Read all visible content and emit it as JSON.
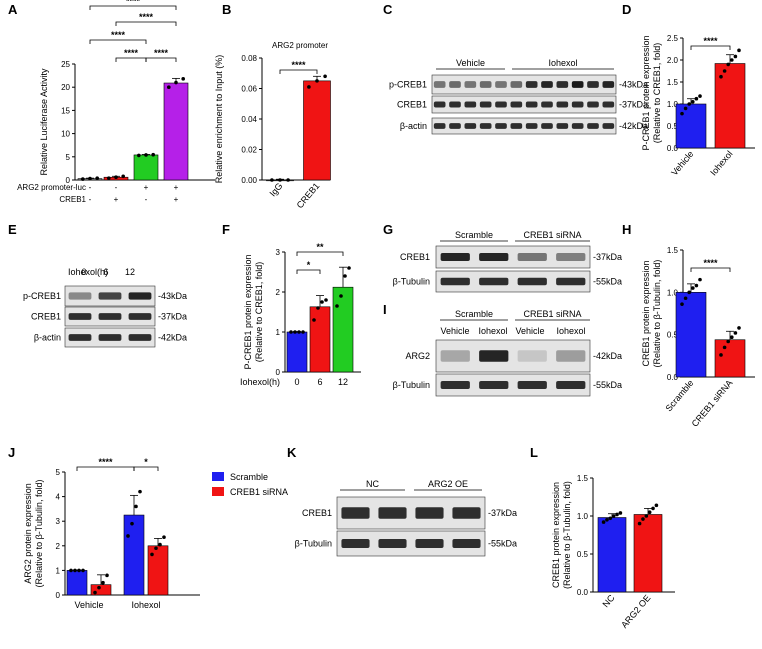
{
  "colors": {
    "blue": "#1f1ff0",
    "red": "#f01414",
    "green": "#22cc22",
    "purple": "#b520e8",
    "band": "#1a1a1a",
    "blot_bg": "#e4e4e4"
  },
  "panels": {
    "A": "A",
    "B": "B",
    "C": "C",
    "D": "D",
    "E": "E",
    "F": "F",
    "G": "G",
    "H": "H",
    "I": "I",
    "J": "J",
    "K": "K",
    "L": "L"
  },
  "blots": {
    "C": {
      "groups": [
        "Vehicle",
        "Iohexol"
      ],
      "rows": [
        "p-CREB1",
        "CREB1",
        "β-actin"
      ],
      "kda": [
        "-43kDa",
        "-37kDa",
        "-42kDa"
      ]
    },
    "E": {
      "header": "Iohexol(h)",
      "times": [
        "0",
        "6",
        "12"
      ],
      "rows": [
        "p-CREB1",
        "CREB1",
        "β-actin"
      ],
      "kda": [
        "-43kDa",
        "-37kDa",
        "-42kDa"
      ]
    },
    "G": {
      "groups": [
        "Scramble",
        "CREB1 siRNA"
      ],
      "rows": [
        "CREB1",
        "β-Tubulin"
      ],
      "kda": [
        "-37kDa",
        "-55kDa"
      ]
    },
    "I": {
      "groups": [
        "Scramble",
        "CREB1 siRNA"
      ],
      "lanes": [
        "Vehicle",
        "Iohexol",
        "Vehicle",
        "Iohexol"
      ],
      "rows": [
        "ARG2",
        "β-Tubulin"
      ],
      "kda": [
        "-42kDa",
        "-55kDa"
      ]
    },
    "K": {
      "groups": [
        "NC",
        "ARG2 OE"
      ],
      "rows": [
        "CREB1",
        "β-Tubulin"
      ],
      "kda": [
        "-37kDa",
        "-55kDa"
      ]
    }
  },
  "chart_data": [
    {
      "panel": "A",
      "type": "bar",
      "ylabel": "Relative Luciferase Activity",
      "ylim": [
        0,
        25
      ],
      "yticks": [
        "0",
        "5",
        "10",
        "15",
        "20",
        "25"
      ],
      "values": [
        0.3,
        0.6,
        5.4,
        20.9
      ],
      "errors": [
        0.1,
        0.2,
        0.1,
        1.0
      ],
      "points": [
        [
          0.2,
          0.3,
          0.4
        ],
        [
          0.4,
          0.6,
          0.8
        ],
        [
          5.3,
          5.4,
          5.45
        ],
        [
          20,
          21,
          21.8
        ]
      ],
      "colors": [
        "#888888",
        "#f01414",
        "#22cc22",
        "#b520e8"
      ],
      "row_labels": [
        "ARG2 promoter-luc",
        "CREB1"
      ],
      "row_values": [
        [
          "-",
          "-",
          "+",
          "+"
        ],
        [
          "-",
          "+",
          "-",
          "+"
        ]
      ],
      "sig": [
        "****",
        "****",
        "****",
        "****",
        "****"
      ]
    },
    {
      "panel": "B",
      "type": "bar",
      "title": "ARG2 promoter",
      "ylabel": "Relative enrichment to Input (%)",
      "ylim": [
        0,
        0.08
      ],
      "yticks": [
        "0.00",
        "0.02",
        "0.04",
        "0.06",
        "0.08"
      ],
      "categories": [
        "IgG",
        "CREB1"
      ],
      "values": [
        0.0,
        0.065
      ],
      "errors": [
        0.0005,
        0.003
      ],
      "points": [
        [
          0,
          0,
          0
        ],
        [
          0.061,
          0.065,
          0.068
        ]
      ],
      "colors": [
        "#888888",
        "#f01414"
      ],
      "sig": [
        "****"
      ]
    },
    {
      "panel": "D",
      "type": "bar",
      "ylabel": "P-CREB1 protein expression",
      "ylabel2": "(Relative to CREB1, fold)",
      "ylim": [
        0,
        2.5
      ],
      "yticks": [
        "0.0",
        "0.5",
        "1.0",
        "1.5",
        "2.0",
        "2.5"
      ],
      "categories": [
        "Vehicle",
        "Iohexol"
      ],
      "values": [
        1.0,
        1.92
      ],
      "errors": [
        0.12,
        0.2
      ],
      "points": [
        [
          0.78,
          0.9,
          1.0,
          1.05,
          1.12,
          1.18
        ],
        [
          1.62,
          1.75,
          1.9,
          2.0,
          2.08,
          2.22
        ]
      ],
      "colors": [
        "#1f1ff0",
        "#f01414"
      ],
      "sig": [
        "****"
      ]
    },
    {
      "panel": "F",
      "type": "bar",
      "ylabel": "P-CREB1 protein expression",
      "ylabel2": "(Relative to CREB1, fold)",
      "ylim": [
        0,
        3
      ],
      "yticks": [
        "0",
        "1",
        "2",
        "3"
      ],
      "categories": [
        "0",
        "6",
        "12"
      ],
      "xlabel": "Iohexol(h)",
      "values": [
        1.0,
        1.63,
        2.12
      ],
      "errors": [
        0.01,
        0.28,
        0.5
      ],
      "points": [
        [
          1,
          1,
          1,
          1
        ],
        [
          1.3,
          1.6,
          1.75,
          1.8
        ],
        [
          1.65,
          1.9,
          2.4,
          2.6
        ]
      ],
      "colors": [
        "#1f1ff0",
        "#f01414",
        "#22cc22"
      ],
      "sig": [
        "*",
        "**"
      ]
    },
    {
      "panel": "H",
      "type": "bar",
      "ylabel": "CREB1 protein expression",
      "ylabel2": "(Relative to β-Tubulin, fold)",
      "ylim": [
        0,
        1.5
      ],
      "yticks": [
        "0.0",
        "0.5",
        "1.0",
        "1.5"
      ],
      "categories": [
        "Scramble",
        "CREB1 siRNA"
      ],
      "values": [
        1.0,
        0.44
      ],
      "errors": [
        0.1,
        0.1
      ],
      "points": [
        [
          0.86,
          0.93,
          1.0,
          1.05,
          1.08,
          1.15
        ],
        [
          0.26,
          0.35,
          0.42,
          0.47,
          0.52,
          0.58
        ]
      ],
      "colors": [
        "#1f1ff0",
        "#f01414"
      ],
      "sig": [
        "****"
      ]
    },
    {
      "panel": "J",
      "type": "bar",
      "ylabel": "ARG2 protein expression",
      "ylabel2": "(Relative to β-Tubulin, fold)",
      "ylim": [
        0,
        5
      ],
      "yticks": [
        "0",
        "1",
        "2",
        "3",
        "4",
        "5"
      ],
      "categories": [
        "Vehicle",
        "Iohexol"
      ],
      "series": [
        {
          "name": "Scramble",
          "values": [
            1.0,
            3.25
          ],
          "errors": [
            0.01,
            0.8
          ],
          "points": [
            [
              1,
              1,
              1,
              1
            ],
            [
              2.4,
              2.9,
              3.6,
              4.2
            ]
          ]
        },
        {
          "name": "CREB1 siRNA",
          "values": [
            0.42,
            2.0
          ],
          "errors": [
            0.4,
            0.3
          ],
          "points": [
            [
              0.1,
              0.3,
              0.5,
              0.8
            ],
            [
              1.65,
              1.9,
              2.05,
              2.35
            ]
          ]
        }
      ],
      "colors": [
        "#1f1ff0",
        "#f01414"
      ],
      "legend": "right",
      "sig": [
        "****",
        "*"
      ]
    },
    {
      "panel": "L",
      "type": "bar",
      "ylabel": "CREB1 protein expression",
      "ylabel2": "(Relative to β-Tubulin, fold)",
      "ylim": [
        0,
        1.5
      ],
      "yticks": [
        "0.0",
        "0.5",
        "1.0",
        "1.5"
      ],
      "categories": [
        "NC",
        "ARG2 OE"
      ],
      "values": [
        0.98,
        1.02
      ],
      "errors": [
        0.05,
        0.08
      ],
      "points": [
        [
          0.92,
          0.95,
          0.97,
          1.0,
          1.02,
          1.04
        ],
        [
          0.9,
          0.96,
          1.0,
          1.05,
          1.1,
          1.14
        ]
      ],
      "colors": [
        "#1f1ff0",
        "#f01414"
      ]
    }
  ]
}
